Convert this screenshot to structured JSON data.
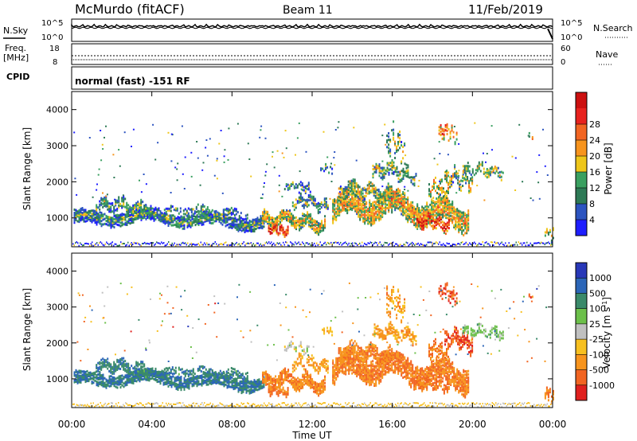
{
  "header": {
    "station": "McMurdo (fitACF)",
    "beam": "Beam 11",
    "date": "11/Feb/2019"
  },
  "top_panels": {
    "nsky": {
      "label": "N.Sky",
      "tick_hi": "10^5",
      "tick_lo": "10^0"
    },
    "nsearch": {
      "label": "N.Search",
      "tick_hi": "10^5",
      "tick_lo": "10^0"
    },
    "freq": {
      "label_l1": "Freq.",
      "label_l2": "[MHz]",
      "tick_hi": "18",
      "tick_lo": "8"
    },
    "nave": {
      "label": "Nave",
      "tick_hi": "60",
      "tick_lo": "0"
    },
    "cpid": {
      "label": "CPID",
      "value": "normal (fast) -151 RF"
    }
  },
  "chart_data": [
    {
      "type": "heatmap",
      "name": "power-panel",
      "ylabel": "Slant Range [km]",
      "xlabel": "Time UT",
      "ylim": [
        200,
        4500
      ],
      "yticks": [
        1000,
        2000,
        3000,
        4000
      ],
      "xticks": [
        "00:00",
        "04:00",
        "08:00",
        "12:00",
        "16:00",
        "20:00",
        "00:00"
      ],
      "colorbar": {
        "label": "Power [dB]",
        "ticks": [
          "4",
          "8",
          "12",
          "16",
          "20",
          "24",
          "28"
        ],
        "colors": [
          "#1e1eff",
          "#2c54c0",
          "#2e7a56",
          "#3aa060",
          "#eec61a",
          "#f7941d",
          "#f26522",
          "#e8221e",
          "#cc1010"
        ]
      }
    },
    {
      "type": "heatmap",
      "name": "velocity-panel",
      "ylabel": "Slant Range [km]",
      "xlabel": "Time UT",
      "ylim": [
        200,
        4500
      ],
      "yticks": [
        1000,
        2000,
        3000,
        4000
      ],
      "xticks": [
        "00:00",
        "04:00",
        "08:00",
        "12:00",
        "16:00",
        "20:00",
        "00:00"
      ],
      "colorbar": {
        "label": "Velocity [m s",
        "label_sup": "-1",
        "label_end": "]",
        "ticks": [
          "1000",
          "500",
          "100",
          "25",
          "-25",
          "-100",
          "-500",
          "-1000"
        ],
        "colors": [
          "#2838b8",
          "#2c66b8",
          "#3a8a6a",
          "#6cc04a",
          "#c0c0c0",
          "#f7c020",
          "#f7941d",
          "#f26522",
          "#e0201e"
        ]
      }
    }
  ],
  "colors": {
    "power_low": "#1e1eff",
    "power_mid": "#3aa060",
    "power_high": "#e8221e",
    "vel_neg": "#f7941d",
    "vel_pos": "#3a8a6a"
  }
}
